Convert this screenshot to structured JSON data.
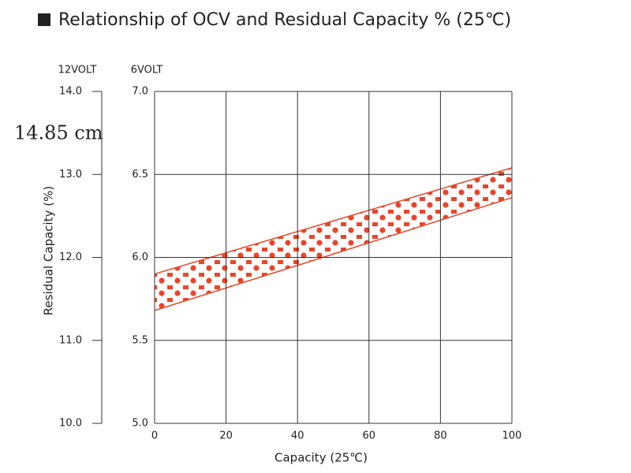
{
  "chart_data": {
    "type": "band",
    "title": "Relationship of OCV and Residual Capacity % (25℃)",
    "annotation": "14.85 cm",
    "ylabel": "Residual Capacity (%)",
    "xlabel": "Capacity (25℃)",
    "y_axis_title": "6VOLT",
    "y2_axis_title": "12VOLT",
    "x": [
      0,
      100
    ],
    "low": [
      5.68,
      6.36
    ],
    "high": [
      5.9,
      6.54
    ],
    "color": "#e8462a",
    "xlim": [
      0,
      100
    ],
    "xticks": [
      0,
      20,
      40,
      60,
      80,
      100
    ],
    "ylim": [
      5,
      7
    ],
    "yticks": [
      {
        "value": 5,
        "label": "5.0"
      },
      {
        "value": 5.5,
        "label": "5.5"
      },
      {
        "value": 6,
        "label": "6.0"
      },
      {
        "value": 6.5,
        "label": "6.5"
      },
      {
        "value": 7,
        "label": "7.0"
      }
    ],
    "y2lim": [
      10,
      14
    ],
    "y2ticks": [
      {
        "value": 10,
        "label": "10.0"
      },
      {
        "value": 11,
        "label": "11.0"
      },
      {
        "value": 12,
        "label": "12.0"
      },
      {
        "value": 13,
        "label": "13.0"
      },
      {
        "value": 14,
        "label": "14.0"
      }
    ],
    "grid": true
  }
}
